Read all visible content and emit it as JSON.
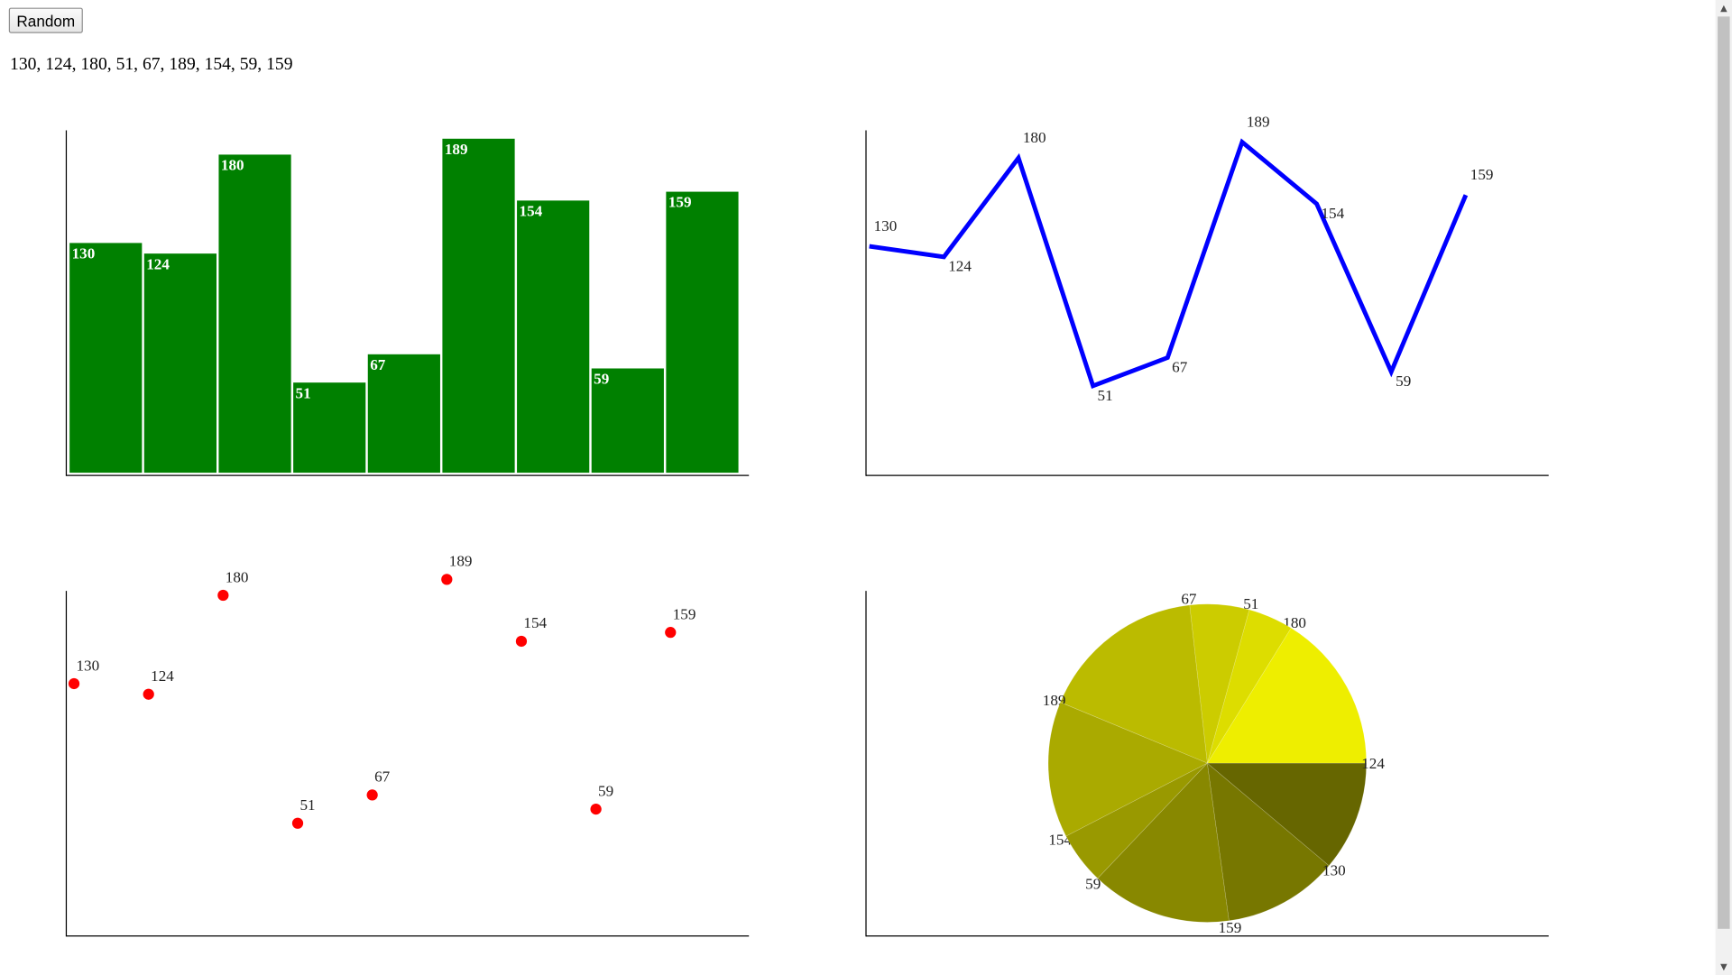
{
  "controls": {
    "random_label": "Random",
    "values_text": "130, 124, 180, 51, 67, 189, 154, 59, 159"
  },
  "colors": {
    "bar": "#008000",
    "line": "#0000ff",
    "points": "#ff0000",
    "pie": [
      "#eeee00",
      "#dddd00",
      "#cccc00",
      "#bbbb00",
      "#aaaa00",
      "#999900",
      "#888800",
      "#777700",
      "#666600"
    ]
  },
  "icons": {
    "scroll_up": "▲",
    "scroll_down": "▼"
  },
  "chart_data": [
    {
      "type": "bar",
      "values": [
        130,
        124,
        180,
        51,
        67,
        189,
        154,
        59,
        159
      ],
      "labels": [
        "130",
        "124",
        "180",
        "51",
        "67",
        "189",
        "154",
        "59",
        "159"
      ],
      "ylim": [
        0,
        200
      ]
    },
    {
      "type": "line",
      "values": [
        130,
        124,
        180,
        51,
        67,
        189,
        154,
        59,
        159
      ],
      "labels": [
        "130",
        "124",
        "180",
        "51",
        "67",
        "189",
        "154",
        "59",
        "159"
      ]
    },
    {
      "type": "scatter",
      "values": [
        130,
        124,
        180,
        51,
        67,
        189,
        154,
        59,
        159
      ],
      "labels": [
        "130",
        "124",
        "180",
        "51",
        "67",
        "189",
        "154",
        "59",
        "159"
      ]
    },
    {
      "type": "pie",
      "values": [
        180,
        51,
        67,
        189,
        154,
        59,
        159,
        130,
        124
      ],
      "labels": [
        "180",
        "51",
        "67",
        "189",
        "154",
        "59",
        "159",
        "130",
        "124"
      ]
    }
  ]
}
